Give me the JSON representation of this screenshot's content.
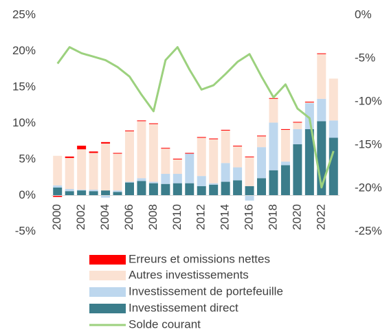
{
  "chart_data": {
    "type": "stacked_bar_line",
    "categories": [
      "2000",
      null,
      "2002",
      null,
      "2004",
      null,
      "2006",
      null,
      "2008",
      null,
      "2010",
      null,
      "2012",
      null,
      "2014",
      null,
      "2016",
      null,
      "2018",
      null,
      "2020",
      null,
      "2022",
      null
    ],
    "series": [
      {
        "name": "Erreurs et omissions nettes",
        "color": "#ff0000",
        "values": [
          -0.2,
          0.2,
          0.5,
          0.2,
          0.2,
          0.1,
          0.1,
          0.1,
          0.1,
          0.1,
          0.1,
          0.1,
          0.1,
          0.1,
          0.1,
          0.1,
          0.1,
          0.1,
          0.1,
          0.1,
          0.1,
          0.1,
          0.1,
          0
        ]
      },
      {
        "name": "Autres investissements",
        "color": "#fbe2d3",
        "values": [
          4.1,
          4.3,
          5.6,
          5.1,
          6.5,
          5.1,
          7.0,
          7.9,
          8.0,
          3.5,
          2.0,
          0,
          5.3,
          6.1,
          4.5,
          2.9,
          4.0,
          1.5,
          3.3,
          4.4,
          0.9,
          0.1,
          6.2,
          5.8
        ]
      },
      {
        "name": "Investissement de portefeuille",
        "color": "#bdd7ee",
        "values": [
          0.3,
          0.3,
          0.1,
          0.2,
          -0.3,
          0.2,
          0.1,
          0.4,
          0.2,
          1.4,
          1.3,
          4.1,
          1.4,
          0.2,
          2.6,
          1.8,
          -0.7,
          4.3,
          6.6,
          0.5,
          2.1,
          3.6,
          3.1,
          2.4
        ]
      },
      {
        "name": "Investissement direct",
        "color": "#3b7d8b",
        "values": [
          1.1,
          0.6,
          0.7,
          0.6,
          0.7,
          0.5,
          1.8,
          2.0,
          1.7,
          1.6,
          1.7,
          1.7,
          1.3,
          1.5,
          1.9,
          2.1,
          1.3,
          2.4,
          3.5,
          4.2,
          7.1,
          9.2,
          10.3,
          8.0
        ]
      },
      {
        "name": "Solde courant",
        "color": "#9cd17e",
        "axis": "y2",
        "values": [
          -5.6,
          -3.7,
          -4.4,
          -4.8,
          -5.2,
          -6.0,
          -7.1,
          -9.2,
          -11.1,
          -5.2,
          -3.7,
          -6.3,
          -8.6,
          -8.1,
          -6.8,
          -5.4,
          -4.5,
          -7.1,
          -9.5,
          -8.0,
          -10.8,
          -11.9,
          -19.9,
          -15.7
        ]
      }
    ],
    "ylim": [
      -5,
      25
    ],
    "yticks": [
      {
        "value": -5,
        "label": "-5%"
      },
      {
        "value": 0,
        "label": "0%"
      },
      {
        "value": 5,
        "label": "5%"
      },
      {
        "value": 10,
        "label": "10%"
      },
      {
        "value": 15,
        "label": "15%"
      },
      {
        "value": 20,
        "label": "20%"
      },
      {
        "value": 25,
        "label": "25%"
      }
    ],
    "y2lim": [
      -25,
      0
    ],
    "y2ticks": [
      {
        "value": -25,
        "label": "-25%"
      },
      {
        "value": -20,
        "label": "-20%"
      },
      {
        "value": -15,
        "label": "-15%"
      },
      {
        "value": -10,
        "label": "-10%"
      },
      {
        "value": -5,
        "label": "-5%"
      },
      {
        "value": 0,
        "label": "0%"
      }
    ]
  }
}
